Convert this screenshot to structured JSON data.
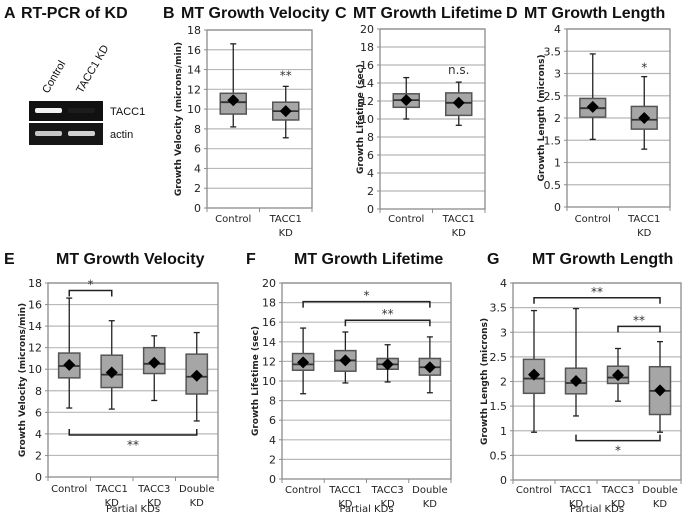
{
  "gel": {
    "letter": "A",
    "title": "RT-PCR of KD",
    "lanes": [
      "Control",
      "TACC1 KD"
    ],
    "bands": [
      {
        "name": "TACC1",
        "intensity": [
          1.0,
          0.05
        ]
      },
      {
        "name": "actin",
        "intensity": [
          0.8,
          0.85
        ]
      }
    ]
  },
  "chart_data": [
    {
      "id": "B",
      "type": "box",
      "letter": "B",
      "title": "MT Growth Velocity",
      "ylabel": "Growth Velocity  (microns/min)",
      "xlabel": "",
      "ylim": [
        0,
        18
      ],
      "yticks": [
        0,
        2,
        4,
        6,
        8,
        10,
        12,
        14,
        16,
        18
      ],
      "grid": true,
      "categories": [
        [
          "Control"
        ],
        [
          "TACC1",
          "KD"
        ]
      ],
      "boxes": [
        {
          "whisker_low": 8.2,
          "q1": 9.5,
          "median": 10.7,
          "q3": 11.6,
          "whisker_high": 16.6,
          "mean": 10.9
        },
        {
          "whisker_low": 7.1,
          "q1": 8.9,
          "median": 9.8,
          "q3": 10.7,
          "whisker_high": 12.3,
          "mean": 9.8
        }
      ],
      "annotations": [
        {
          "text": "**",
          "over": 1,
          "y": 13.0
        }
      ],
      "brackets": []
    },
    {
      "id": "C",
      "type": "box",
      "letter": "C",
      "title": "MT Growth Lifetime",
      "ylabel": "Growth Lifetime (sec)",
      "xlabel": "",
      "ylim": [
        0,
        20
      ],
      "yticks": [
        0,
        2,
        4,
        6,
        8,
        10,
        12,
        14,
        16,
        18,
        20
      ],
      "grid": true,
      "categories": [
        [
          "Control"
        ],
        [
          "TACC1",
          "KD"
        ]
      ],
      "boxes": [
        {
          "whisker_low": 10.0,
          "q1": 11.3,
          "median": 12.1,
          "q3": 12.8,
          "whisker_high": 14.6,
          "mean": 12.1
        },
        {
          "whisker_low": 9.3,
          "q1": 10.4,
          "median": 11.8,
          "q3": 12.9,
          "whisker_high": 14.1,
          "mean": 11.8
        }
      ],
      "annotations": [
        {
          "text": "n.s.",
          "over": 1,
          "y": 15.0
        }
      ],
      "brackets": []
    },
    {
      "id": "D",
      "type": "box",
      "letter": "D",
      "title": "MT Growth Length",
      "ylabel": "Growth Length (microns)",
      "xlabel": "",
      "ylim": [
        0,
        4
      ],
      "yticks": [
        0,
        0.5,
        1,
        1.5,
        2,
        2.5,
        3,
        3.5,
        4
      ],
      "grid": true,
      "categories": [
        [
          "Control"
        ],
        [
          "TACC1",
          "KD"
        ]
      ],
      "boxes": [
        {
          "whisker_low": 1.52,
          "q1": 2.02,
          "median": 2.22,
          "q3": 2.44,
          "whisker_high": 3.44,
          "mean": 2.25
        },
        {
          "whisker_low": 1.3,
          "q1": 1.75,
          "median": 1.96,
          "q3": 2.26,
          "whisker_high": 2.93,
          "mean": 2.0
        }
      ],
      "annotations": [
        {
          "text": "*",
          "over": 1,
          "y": 3.05
        }
      ],
      "brackets": []
    },
    {
      "id": "E",
      "type": "box",
      "letter": "E",
      "title": "MT Growth Velocity",
      "ylabel": "Growth Velocity  (microns/min)",
      "xlabel": "Partial KDs",
      "ylim": [
        0,
        18
      ],
      "yticks": [
        0,
        2,
        4,
        6,
        8,
        10,
        12,
        14,
        16,
        18
      ],
      "grid": true,
      "categories": [
        [
          "Control"
        ],
        [
          "TACC1",
          "KD"
        ],
        [
          "TACC3",
          "KD"
        ],
        [
          "Double",
          "KD"
        ]
      ],
      "boxes": [
        {
          "whisker_low": 6.4,
          "q1": 9.2,
          "median": 10.3,
          "q3": 11.5,
          "whisker_high": 16.6,
          "mean": 10.4
        },
        {
          "whisker_low": 6.3,
          "q1": 8.3,
          "median": 9.5,
          "q3": 11.3,
          "whisker_high": 14.5,
          "mean": 9.7
        },
        {
          "whisker_low": 7.1,
          "q1": 9.6,
          "median": 10.5,
          "q3": 12.0,
          "whisker_high": 13.1,
          "mean": 10.6
        },
        {
          "whisker_low": 5.2,
          "q1": 7.7,
          "median": 9.3,
          "q3": 11.4,
          "whisker_high": 13.4,
          "mean": 9.4
        }
      ],
      "annotations": [],
      "brackets": [
        {
          "from": 0,
          "to": 1,
          "y": 17.3,
          "dir": "down",
          "text": "*"
        },
        {
          "from": 0,
          "to": 3,
          "y": 3.9,
          "dir": "up",
          "text": "**"
        }
      ]
    },
    {
      "id": "F",
      "type": "box",
      "letter": "F",
      "title": "MT Growth Lifetime",
      "ylabel": "Growth Lifetime (sec)",
      "xlabel": "Partial KDs",
      "ylim": [
        0,
        20
      ],
      "yticks": [
        0,
        2,
        4,
        6,
        8,
        10,
        12,
        14,
        16,
        18,
        20
      ],
      "grid": true,
      "categories": [
        [
          "Control"
        ],
        [
          "TACC1",
          "KD"
        ],
        [
          "TACC3",
          "KD"
        ],
        [
          "Double",
          "KD"
        ]
      ],
      "boxes": [
        {
          "whisker_low": 8.7,
          "q1": 11.1,
          "median": 11.7,
          "q3": 12.8,
          "whisker_high": 15.4,
          "mean": 11.9
        },
        {
          "whisker_low": 9.8,
          "q1": 11.0,
          "median": 12.1,
          "q3": 13.1,
          "whisker_high": 15.0,
          "mean": 12.1
        },
        {
          "whisker_low": 9.9,
          "q1": 11.2,
          "median": 11.7,
          "q3": 12.3,
          "whisker_high": 13.7,
          "mean": 11.7
        },
        {
          "whisker_low": 8.8,
          "q1": 10.6,
          "median": 11.4,
          "q3": 12.3,
          "whisker_high": 14.5,
          "mean": 11.4
        }
      ],
      "annotations": [],
      "brackets": [
        {
          "from": 0,
          "to": 3,
          "y": 18.1,
          "dir": "down",
          "text": "*"
        },
        {
          "from": 1,
          "to": 3,
          "y": 16.2,
          "dir": "down",
          "text": "**"
        }
      ]
    },
    {
      "id": "G",
      "type": "box",
      "letter": "G",
      "title": "MT Growth Length",
      "ylabel": "Growth Length (microns)",
      "xlabel": "Partial KDs",
      "ylim": [
        0,
        4
      ],
      "yticks": [
        0,
        0.5,
        1,
        1.5,
        2,
        2.5,
        3,
        3.5,
        4
      ],
      "grid": true,
      "categories": [
        [
          "Control"
        ],
        [
          "TACC1",
          "KD"
        ],
        [
          "TACC3",
          "KD"
        ],
        [
          "Double",
          "KD"
        ]
      ],
      "boxes": [
        {
          "whisker_low": 0.97,
          "q1": 1.76,
          "median": 2.06,
          "q3": 2.45,
          "whisker_high": 3.44,
          "mean": 2.14
        },
        {
          "whisker_low": 1.3,
          "q1": 1.75,
          "median": 1.97,
          "q3": 2.27,
          "whisker_high": 3.48,
          "mean": 2.01
        },
        {
          "whisker_low": 1.6,
          "q1": 1.96,
          "median": 2.08,
          "q3": 2.31,
          "whisker_high": 2.67,
          "mean": 2.13
        },
        {
          "whisker_low": 0.97,
          "q1": 1.33,
          "median": 1.81,
          "q3": 2.3,
          "whisker_high": 2.81,
          "mean": 1.82
        }
      ],
      "annotations": [],
      "brackets": [
        {
          "from": 0,
          "to": 3,
          "y": 3.7,
          "dir": "down",
          "text": "**"
        },
        {
          "from": 2,
          "to": 3,
          "y": 3.12,
          "dir": "down",
          "text": "**"
        },
        {
          "from": 1,
          "to": 3,
          "y": 0.8,
          "dir": "up",
          "text": "*"
        }
      ]
    }
  ],
  "colors": {
    "box_fill": "#a6a6a6",
    "box_stroke": "#555555",
    "grid": "#b8b8b8",
    "axis": "#8c8c8c",
    "whisker": "#222222",
    "mean_marker": "#000000"
  }
}
